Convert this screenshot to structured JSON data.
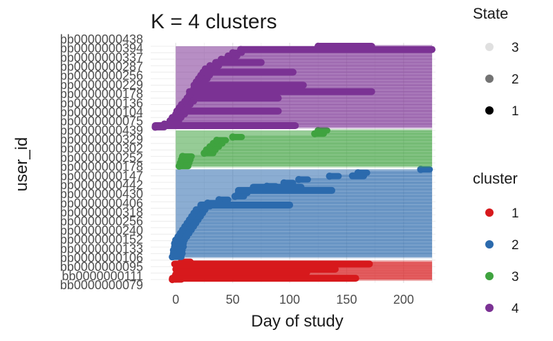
{
  "chart_data": {
    "type": "scatter",
    "title": "K = 4 clusters",
    "xlabel": "Day of study",
    "ylabel": "user_id",
    "xlim": [
      -22,
      228
    ],
    "x_ticks": [
      0,
      50,
      100,
      150,
      200
    ],
    "grid": true,
    "state_legend": {
      "title": "State",
      "items": [
        {
          "label": "3",
          "opacity": 0.12
        },
        {
          "label": "2",
          "opacity": 0.55
        },
        {
          "label": "1",
          "opacity": 1.0
        }
      ]
    },
    "cluster_legend": {
      "title": "cluster",
      "items": [
        {
          "label": "1",
          "color": "#d7191c"
        },
        {
          "label": "2",
          "color": "#2b6aad"
        },
        {
          "label": "3",
          "color": "#3fa33f"
        },
        {
          "label": "4",
          "color": "#7b3294"
        }
      ]
    },
    "y_tick_labels": [
      "bb0000000079",
      "bb0000000111",
      "bb0000000095",
      "bb0000000106",
      "bb0000000133",
      "bb0000000152",
      "bb0000000240",
      "bb0000000256",
      "bb0000000318",
      "bb0000000406",
      "bb0000000430",
      "bb0000000442",
      "bb0000000147",
      "bb0000000178",
      "bb0000000252",
      "bb0000000302",
      "bb0000000329",
      "bb0000000439",
      "bb0000000075",
      "bb0000000104",
      "bb0000000136",
      "bb0000000178",
      "bb0000000229",
      "bb0000000256",
      "bb0000000287",
      "bb0000000337",
      "bb0000000394",
      "bb0000000438"
    ],
    "clusters": [
      {
        "cluster": "1",
        "y_start": 0,
        "y_end": 5.5,
        "series_start": [
          -3,
          -1,
          0,
          1,
          2,
          3,
          4,
          5
        ]
      },
      {
        "cluster": "2",
        "y_start": 7,
        "y_end": 34,
        "series_start": [
          -3,
          -2,
          -2,
          -1,
          -1,
          0,
          2,
          4,
          6,
          8,
          10,
          12,
          14,
          16,
          18,
          22,
          28,
          38,
          52,
          55,
          68,
          80,
          95,
          108,
          135,
          160,
          215
        ]
      },
      {
        "cluster": "3",
        "y_start": 35,
        "y_end": 46,
        "series_start": [
          3,
          4,
          5,
          6,
          25,
          27,
          30,
          33,
          36,
          50,
          122,
          125
        ]
      },
      {
        "cluster": "4",
        "y_start": 47,
        "y_end": 72,
        "series_start": [
          -18,
          -10,
          -5,
          -3,
          0,
          1,
          3,
          5,
          8,
          10,
          12,
          14,
          16,
          17,
          18,
          20,
          22,
          24,
          26,
          30,
          36,
          40,
          46,
          50,
          57,
          125
        ]
      }
    ],
    "highlight_segments": [
      {
        "cluster": "1",
        "x1": -3,
        "x2": 158,
        "y": 0.4
      },
      {
        "cluster": "1",
        "x1": -1,
        "x2": 170,
        "y": 4.8
      },
      {
        "cluster": "1",
        "x1": 0,
        "x2": 140,
        "y": 3.2
      },
      {
        "cluster": "1",
        "x1": 2,
        "x2": 115,
        "y": 2.2
      },
      {
        "cluster": "2",
        "x1": 55,
        "x2": 137,
        "y": 27.5
      },
      {
        "cluster": "2",
        "x1": 22,
        "x2": 100,
        "y": 23
      },
      {
        "cluster": "2",
        "x1": 68,
        "x2": 110,
        "y": 28.5
      },
      {
        "cluster": "2",
        "x1": 155,
        "x2": 165,
        "y": 32
      },
      {
        "cluster": "4",
        "x1": 57,
        "x2": 225,
        "y": 71
      },
      {
        "cluster": "4",
        "x1": 125,
        "x2": 172,
        "y": 72
      },
      {
        "cluster": "4",
        "x1": -18,
        "x2": 105,
        "y": 47.5
      },
      {
        "cluster": "4",
        "x1": 12,
        "x2": 172,
        "y": 58
      },
      {
        "cluster": "4",
        "x1": 25,
        "x2": 103,
        "y": 64
      },
      {
        "cluster": "4",
        "x1": 35,
        "x2": 75,
        "y": 67
      },
      {
        "cluster": "4",
        "x1": 16,
        "x2": 112,
        "y": 60
      },
      {
        "cluster": "4",
        "x1": 18,
        "x2": 90,
        "y": 56
      },
      {
        "cluster": "4",
        "x1": 8,
        "x2": 90,
        "y": 52
      }
    ]
  }
}
